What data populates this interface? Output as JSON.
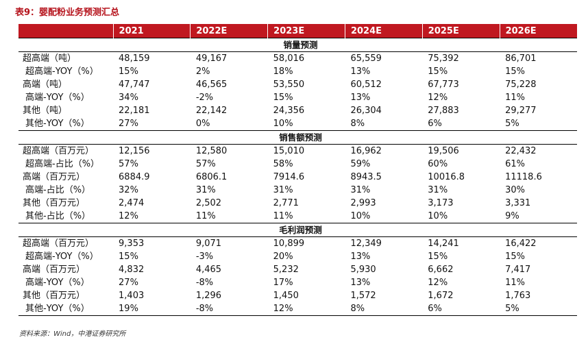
{
  "title": "表9：婴配粉业务预测汇总",
  "header": [
    "",
    "2021",
    "2022E",
    "2023E",
    "2024E",
    "2025E",
    "2026E"
  ],
  "sections": [
    {
      "name": "销量预测",
      "rows": [
        {
          "label": "超高端（吨）",
          "values": [
            "48,159",
            "49,167",
            "58,016",
            "65,559",
            "75,392",
            "86,701"
          ]
        },
        {
          "label": "超高端-YOY（%）",
          "values": [
            "15%",
            "2%",
            "18%",
            "13%",
            "15%",
            "15%"
          ]
        },
        {
          "label": "高端（吨）",
          "values": [
            "47,747",
            "46,565",
            "53,550",
            "60,512",
            "67,773",
            "75,228"
          ]
        },
        {
          "label": "高端-YOY（%）",
          "values": [
            "34%",
            "-2%",
            "15%",
            "13%",
            "12%",
            "11%"
          ]
        },
        {
          "label": "其他（吨）",
          "values": [
            "22,181",
            "22,142",
            "24,356",
            "26,304",
            "27,883",
            "29,277"
          ]
        },
        {
          "label": "其他-YOY（%）",
          "values": [
            "27%",
            "0%",
            "10%",
            "8%",
            "6%",
            "5%"
          ]
        }
      ]
    },
    {
      "name": "销售额预测",
      "rows": [
        {
          "label": "超高端（百万元）",
          "values": [
            "12,156",
            "12,580",
            "15,010",
            "16,962",
            "19,506",
            "22,432"
          ]
        },
        {
          "label": "超高端-占比（%）",
          "values": [
            "57%",
            "57%",
            "58%",
            "59%",
            "60%",
            "61%"
          ]
        },
        {
          "label": "高端（百万元）",
          "values": [
            "6884.9",
            "6806.1",
            "7914.6",
            "8943.5",
            "10016.8",
            "11118.6"
          ]
        },
        {
          "label": "高端-占比（%）",
          "values": [
            "32%",
            "31%",
            "31%",
            "31%",
            "31%",
            "30%"
          ]
        },
        {
          "label": "其他（百万元）",
          "values": [
            "2,474",
            "2,502",
            "2,771",
            "2,993",
            "3,173",
            "3,331"
          ]
        },
        {
          "label": "其他-占比（%）",
          "values": [
            "12%",
            "11%",
            "11%",
            "10%",
            "10%",
            "9%"
          ]
        }
      ]
    },
    {
      "name": "毛利润预测",
      "rows": [
        {
          "label": "超高端（百万元）",
          "values": [
            "9,353",
            "9,071",
            "10,899",
            "12,349",
            "14,241",
            "16,422"
          ]
        },
        {
          "label": "超高端-YOY（%）",
          "values": [
            "15%",
            "-3%",
            "20%",
            "13%",
            "15%",
            "15%"
          ]
        },
        {
          "label": "高端（百万元）",
          "values": [
            "4,832",
            "4,465",
            "5,232",
            "5,930",
            "6,662",
            "7,417"
          ]
        },
        {
          "label": "高端-YOY（%）",
          "values": [
            "27%",
            "-8%",
            "17%",
            "13%",
            "12%",
            "11%"
          ]
        },
        {
          "label": "其他（百万元）",
          "values": [
            "1,403",
            "1,296",
            "1,450",
            "1,572",
            "1,672",
            "1,763"
          ]
        },
        {
          "label": "其他-YOY（%）",
          "values": [
            "19%",
            "-8%",
            "12%",
            "8%",
            "6%",
            "5%"
          ]
        }
      ]
    }
  ],
  "source": "资料来源：Wind，中港证券研究所"
}
